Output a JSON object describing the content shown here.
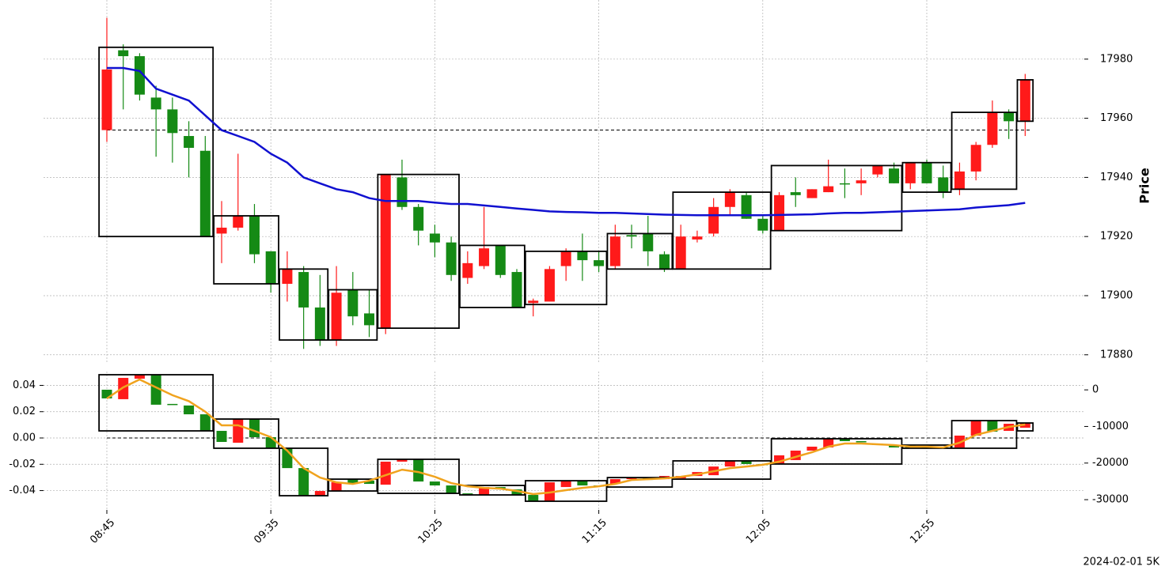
{
  "chart_data": [
    {
      "type": "candlestick",
      "ylabel": "Price",
      "yaxis": "right",
      "grid": true,
      "up_color": "#ff1a1a",
      "down_color": "#158a15",
      "open": [
        17956,
        17983,
        17981,
        17967,
        17963,
        17954,
        17949,
        17921,
        17923,
        17927,
        17915,
        17904,
        17908,
        17896,
        17885,
        17902,
        17894,
        17889,
        17940,
        17930,
        17921,
        17918,
        17906,
        17910,
        17917,
        17908,
        17897.5,
        17898,
        17910,
        17915,
        17912,
        17910,
        17920.5,
        17921,
        17914,
        17909,
        17919,
        17921,
        17930,
        17934,
        17926,
        17922,
        17935,
        17933,
        17935,
        17938,
        17938,
        17941,
        17943,
        17938,
        17945,
        17940,
        17936,
        17942,
        17951,
        17962,
        17959
      ],
      "high": [
        17994,
        17985,
        17982,
        17971,
        17967,
        17959,
        17954,
        17932,
        17948,
        17931,
        17915,
        17915,
        17910,
        17907,
        17910,
        17908,
        17902,
        17941,
        17946,
        17931,
        17924,
        17920,
        17915,
        17930,
        17917,
        17909,
        17899,
        17910,
        17916,
        17921,
        17915,
        17924,
        17924,
        17927,
        17915,
        17924,
        17922,
        17933,
        17936,
        17935,
        17927,
        17935,
        17940,
        17936,
        17946,
        17943,
        17943,
        17944,
        17945,
        17945,
        17946,
        17944,
        17945,
        17952,
        17966,
        17963,
        17975
      ],
      "low": [
        17952,
        17963,
        17966,
        17947,
        17945,
        17940,
        17920,
        17911,
        17922,
        17911,
        17901,
        17898,
        17882,
        17883,
        17883,
        17890,
        17886,
        17887,
        17929,
        17917,
        17913,
        17905,
        17904,
        17909,
        17906,
        17896,
        17893,
        17898,
        17905,
        17905,
        17908,
        17909,
        17916,
        17910,
        17908,
        17909,
        17918,
        17920,
        17927,
        17926,
        17921,
        17922,
        17930,
        17933,
        17935,
        17933,
        17934,
        17940,
        17938,
        17936,
        17938,
        17933,
        17934,
        17939,
        17950,
        17953,
        17954
      ],
      "close": [
        17976.5,
        17981,
        17968,
        17963,
        17955,
        17950,
        17920,
        17923,
        17927,
        17914,
        17904,
        17909,
        17896,
        17885,
        17901,
        17893,
        17890,
        17941,
        17930,
        17922,
        17918,
        17907,
        17911,
        17916,
        17907,
        17896,
        17898.3,
        17909,
        17915,
        17912,
        17910,
        17920,
        17920,
        17915,
        17909,
        17920,
        17920,
        17930,
        17935,
        17926,
        17922,
        17934,
        17934,
        17936,
        17937,
        17937.7,
        17939,
        17944,
        17938,
        17945,
        17938,
        17935,
        17942,
        17951,
        17962,
        17959,
        17973
      ],
      "line": {
        "color": "#1010d0",
        "values": [
          17977,
          17977,
          17976,
          17970,
          17968,
          17966,
          17961,
          17956,
          17954,
          17952,
          17948,
          17945,
          17940,
          17938,
          17936,
          17935,
          17933,
          17932,
          17932,
          17932,
          17931.5,
          17931,
          17931,
          17930.5,
          17930,
          17929.5,
          17929,
          17928.5,
          17928.3,
          17928.2,
          17928,
          17928,
          17927.8,
          17927.6,
          17927.4,
          17927.3,
          17927.2,
          17927.2,
          17927.2,
          17927.2,
          17927.2,
          17927.3,
          17927.4,
          17927.5,
          17927.8,
          17928,
          17928,
          17928.2,
          17928.4,
          17928.6,
          17928.8,
          17929,
          17929.2,
          17929.8,
          17930.2,
          17930.6,
          17931.4
        ]
      },
      "hline": 17956,
      "boxes": [
        {
          "first": 0,
          "last": 6,
          "high": 17984,
          "low": 17920
        },
        {
          "first": 7,
          "last": 10,
          "high": 17927,
          "low": 17904
        },
        {
          "first": 11,
          "last": 13,
          "high": 17909,
          "low": 17885
        },
        {
          "first": 14,
          "last": 16,
          "high": 17902,
          "low": 17885
        },
        {
          "first": 17,
          "last": 21,
          "high": 17941,
          "low": 17889
        },
        {
          "first": 22,
          "last": 25,
          "high": 17917,
          "low": 17896
        },
        {
          "first": 26,
          "last": 30,
          "high": 17915,
          "low": 17897
        },
        {
          "first": 31,
          "last": 34,
          "high": 17921,
          "low": 17909
        },
        {
          "first": 35,
          "last": 40,
          "high": 17935,
          "low": 17909
        },
        {
          "first": 41,
          "last": 48,
          "high": 17944,
          "low": 17922
        },
        {
          "first": 49,
          "last": 51,
          "high": 17945,
          "low": 17935
        },
        {
          "first": 52,
          "last": 55,
          "high": 17962,
          "low": 17936
        },
        {
          "first": 56,
          "last": 56,
          "high": 17973,
          "low": 17959
        }
      ],
      "ylim": [
        17877,
        18000
      ],
      "yticks": [
        17880,
        17900,
        17920,
        17940,
        17960,
        17980
      ]
    },
    {
      "type": "candlestick",
      "yaxis": "left",
      "grid": true,
      "up_color": "#ff1a1a",
      "down_color": "#158a15",
      "categories": [
        "08:45",
        null,
        null,
        null,
        null,
        null,
        null,
        null,
        null,
        null,
        "09:35",
        null,
        null,
        null,
        null,
        null,
        null,
        null,
        null,
        null,
        "10:25",
        null,
        null,
        null,
        null,
        null,
        null,
        null,
        null,
        null,
        "11:15",
        null,
        null,
        null,
        null,
        null,
        null,
        null,
        null,
        null,
        "12:05",
        null,
        null,
        null,
        null,
        null,
        null,
        null,
        null,
        null,
        "12:55",
        null,
        null,
        null,
        null,
        null,
        null
      ],
      "open": [
        0.0367,
        0.0295,
        0.0451,
        0.0481,
        0.0259,
        0.0247,
        0.018,
        0.0054,
        -0.0036,
        0.0144,
        0.0006,
        -0.0078,
        -0.0229,
        -0.0439,
        -0.0403,
        -0.0313,
        -0.0325,
        -0.0355,
        -0.018,
        -0.0162,
        -0.0331,
        -0.0361,
        -0.0421,
        -0.0433,
        -0.0373,
        -0.0391,
        -0.0433,
        -0.0481,
        -0.0373,
        -0.0325,
        -0.0361,
        -0.0349,
        -0.0313,
        -0.0301,
        -0.0313,
        -0.0307,
        -0.0289,
        -0.0283,
        -0.0217,
        -0.0174,
        -0.0198,
        -0.0192,
        -0.0168,
        -0.0096,
        -0.0072,
        -0.0006,
        -0.0024,
        -0.0042,
        -0.0054,
        -0.0054,
        -0.0066,
        -0.0072,
        -0.0072,
        0.0018,
        0.0132,
        0.0054,
        0.0078
      ],
      "close": [
        0.0301,
        0.0457,
        0.0481,
        0.0253,
        0.0253,
        0.018,
        0.0054,
        -0.003,
        0.0144,
        0.0006,
        -0.0078,
        -0.0229,
        -0.0439,
        -0.0403,
        -0.0337,
        -0.0349,
        -0.0349,
        -0.018,
        -0.0162,
        -0.0331,
        -0.0361,
        -0.0421,
        -0.0433,
        -0.0373,
        -0.0391,
        -0.0433,
        -0.0481,
        -0.0337,
        -0.0325,
        -0.0361,
        -0.0367,
        -0.0313,
        -0.0301,
        -0.0319,
        -0.0289,
        -0.0289,
        -0.0259,
        -0.0217,
        -0.0174,
        -0.0198,
        -0.0204,
        -0.0132,
        -0.0096,
        -0.0066,
        -0.0006,
        -0.0024,
        -0.003,
        -0.0054,
        -0.0072,
        -0.0072,
        -0.0078,
        -0.0078,
        0.0018,
        0.0132,
        0.0048,
        0.0108,
        0.0114
      ],
      "line": {
        "color": "#f0a31e",
        "values": [
          0.03,
          0.0385,
          0.0445,
          0.0385,
          0.0325,
          0.028,
          0.02,
          0.0096,
          0.0096,
          0.0054,
          0.0006,
          -0.0096,
          -0.0229,
          -0.0301,
          -0.0337,
          -0.0349,
          -0.0325,
          -0.0283,
          -0.0241,
          -0.0259,
          -0.0295,
          -0.0343,
          -0.0367,
          -0.0379,
          -0.0385,
          -0.0403,
          -0.0427,
          -0.0415,
          -0.0397,
          -0.0379,
          -0.0367,
          -0.0349,
          -0.0319,
          -0.0313,
          -0.0307,
          -0.0295,
          -0.0277,
          -0.0253,
          -0.0229,
          -0.0217,
          -0.0204,
          -0.018,
          -0.0144,
          -0.0108,
          -0.0066,
          -0.0042,
          -0.0042,
          -0.0048,
          -0.0054,
          -0.0066,
          -0.0066,
          -0.0072,
          -0.0036,
          0.0024,
          0.0054,
          0.0084,
          0.0102
        ]
      },
      "hline": 0,
      "boxes": [
        {
          "first": 0,
          "last": 6,
          "high": 0.0481,
          "low": 0.0054
        },
        {
          "first": 7,
          "last": 10,
          "high": 0.0144,
          "low": -0.0078
        },
        {
          "first": 11,
          "last": 13,
          "high": -0.0078,
          "low": -0.0439
        },
        {
          "first": 14,
          "last": 16,
          "high": -0.0313,
          "low": -0.0403
        },
        {
          "first": 17,
          "last": 21,
          "high": -0.0162,
          "low": -0.0421
        },
        {
          "first": 22,
          "last": 25,
          "high": -0.0361,
          "low": -0.0433
        },
        {
          "first": 26,
          "last": 30,
          "high": -0.0325,
          "low": -0.0481
        },
        {
          "first": 31,
          "last": 34,
          "high": -0.0301,
          "low": -0.0373
        },
        {
          "first": 35,
          "last": 40,
          "high": -0.0174,
          "low": -0.0313
        },
        {
          "first": 41,
          "last": 48,
          "high": -0.0006,
          "low": -0.0198
        },
        {
          "first": 49,
          "last": 51,
          "high": -0.0054,
          "low": -0.0078
        },
        {
          "first": 52,
          "last": 55,
          "high": 0.0132,
          "low": -0.0078
        },
        {
          "first": 56,
          "last": 56,
          "high": 0.0114,
          "low": 0.0054
        }
      ],
      "ylim": [
        -0.0547,
        0.0505
      ],
      "yticks": [
        -0.04,
        -0.02,
        {
          "value": 0,
          "label": "0.00"
        },
        0.02,
        0.04
      ],
      "y2lim": [
        -32800,
        5000
      ],
      "y2ticks": [
        -30000,
        -20000,
        -10000,
        0
      ]
    }
  ],
  "footnote": "2024-02-01 5K"
}
